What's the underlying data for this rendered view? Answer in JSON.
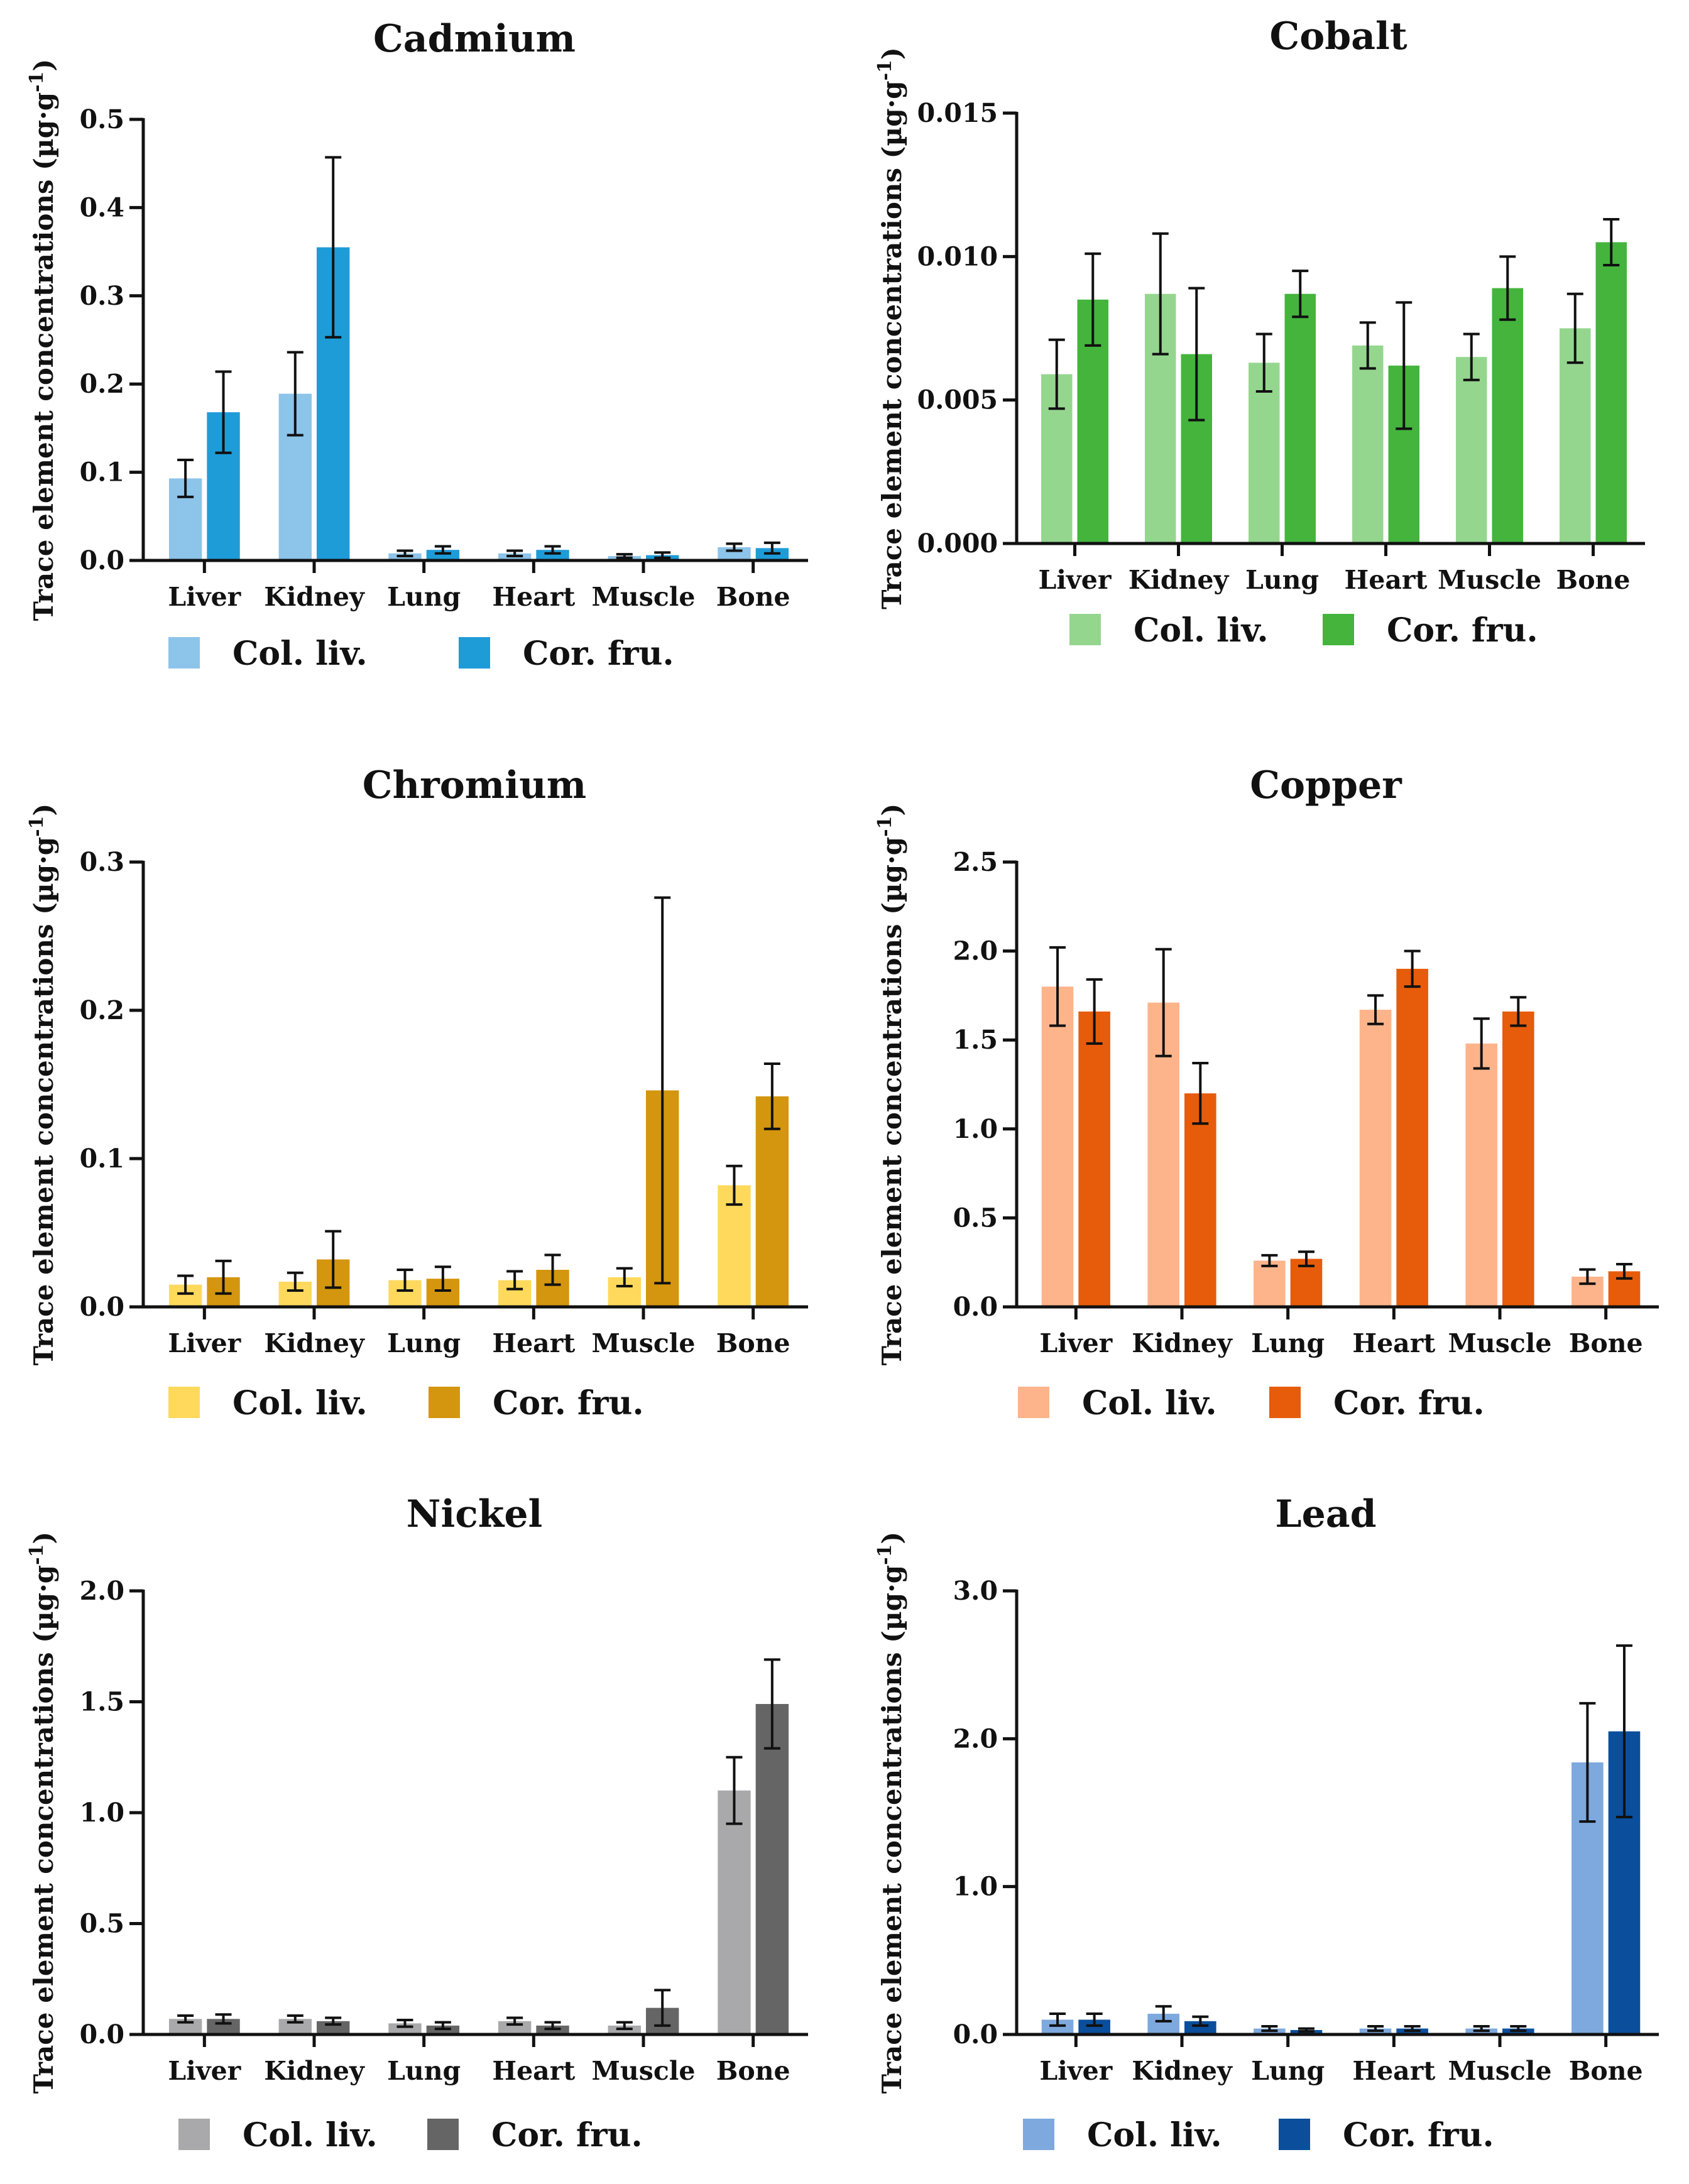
{
  "y_label": "Trace element concentrations (µg·g",
  "y_label_sup": "-1",
  "y_label_end": ")",
  "chart_data": [
    {
      "type": "bar",
      "title": "Cadmium",
      "categories": [
        "Liver",
        "Kidney",
        "Lung",
        "Heart",
        "Muscle",
        "Bone"
      ],
      "ylim": [
        0,
        0.5
      ],
      "ticks": [
        0.0,
        0.1,
        0.2,
        0.3,
        0.4,
        0.5
      ],
      "tick_labels": [
        "0.0",
        "0.1",
        "0.2",
        "0.3",
        "0.4",
        "0.5"
      ],
      "series": [
        {
          "name": "Col. liv.",
          "color": "#8cc4ea",
          "values": [
            0.093,
            0.189,
            0.008,
            0.008,
            0.005,
            0.015
          ],
          "errors": [
            0.021,
            0.047,
            0.003,
            0.003,
            0.002,
            0.004
          ]
        },
        {
          "name": "Cor. fru.",
          "color": "#1e9cd8",
          "values": [
            0.168,
            0.355,
            0.012,
            0.012,
            0.006,
            0.014
          ],
          "errors": [
            0.046,
            0.102,
            0.004,
            0.004,
            0.003,
            0.006
          ]
        }
      ]
    },
    {
      "type": "bar",
      "title": "Cobalt",
      "categories": [
        "Liver",
        "Kidney",
        "Lung",
        "Heart",
        "Muscle",
        "Bone"
      ],
      "ylim": [
        0,
        0.015
      ],
      "ticks": [
        0.0,
        0.005,
        0.01,
        0.015
      ],
      "tick_labels": [
        "0.000",
        "0.005",
        "0.010",
        "0.015"
      ],
      "series": [
        {
          "name": "Col. liv.",
          "color": "#95d68f",
          "values": [
            0.0059,
            0.0087,
            0.0063,
            0.0069,
            0.0065,
            0.0075
          ],
          "errors": [
            0.0012,
            0.0021,
            0.001,
            0.0008,
            0.0008,
            0.0012
          ]
        },
        {
          "name": "Cor. fru.",
          "color": "#44b43d",
          "values": [
            0.0085,
            0.0066,
            0.0087,
            0.0062,
            0.0089,
            0.0105
          ],
          "errors": [
            0.0016,
            0.0023,
            0.0008,
            0.0022,
            0.0011,
            0.0008
          ]
        }
      ]
    },
    {
      "type": "bar",
      "title": "Chromium",
      "categories": [
        "Liver",
        "Kidney",
        "Lung",
        "Heart",
        "Muscle",
        "Bone"
      ],
      "ylim": [
        0,
        0.3
      ],
      "ticks": [
        0.0,
        0.1,
        0.2,
        0.3
      ],
      "tick_labels": [
        "0.0",
        "0.1",
        "0.2",
        "0.3"
      ],
      "series": [
        {
          "name": "Col. liv.",
          "color": "#fed95c",
          "values": [
            0.015,
            0.017,
            0.018,
            0.018,
            0.02,
            0.082
          ],
          "errors": [
            0.006,
            0.006,
            0.007,
            0.006,
            0.006,
            0.013
          ]
        },
        {
          "name": "Cor. fru.",
          "color": "#d4960f",
          "values": [
            0.02,
            0.032,
            0.019,
            0.025,
            0.146,
            0.142
          ],
          "errors": [
            0.011,
            0.019,
            0.008,
            0.01,
            0.13,
            0.022
          ]
        }
      ]
    },
    {
      "type": "bar",
      "title": "Copper",
      "categories": [
        "Liver",
        "Kidney",
        "Lung",
        "Heart",
        "Muscle",
        "Bone"
      ],
      "ylim": [
        0,
        2.5
      ],
      "ticks": [
        0.0,
        0.5,
        1.0,
        1.5,
        2.0,
        2.5
      ],
      "tick_labels": [
        "0.0",
        "0.5",
        "1.0",
        "1.5",
        "2.0",
        "2.5"
      ],
      "series": [
        {
          "name": "Col. liv.",
          "color": "#fdb48b",
          "values": [
            1.8,
            1.71,
            0.26,
            1.67,
            1.48,
            0.17
          ],
          "errors": [
            0.22,
            0.3,
            0.03,
            0.08,
            0.14,
            0.04
          ]
        },
        {
          "name": "Cor. fru.",
          "color": "#e65c0a",
          "values": [
            1.66,
            1.2,
            0.27,
            1.9,
            1.66,
            0.2
          ],
          "errors": [
            0.18,
            0.17,
            0.04,
            0.1,
            0.08,
            0.04
          ]
        }
      ]
    },
    {
      "type": "bar",
      "title": "Nickel",
      "categories": [
        "Liver",
        "Kidney",
        "Lung",
        "Heart",
        "Muscle",
        "Bone"
      ],
      "ylim": [
        0,
        2.0
      ],
      "ticks": [
        0.0,
        0.5,
        1.0,
        1.5,
        2.0
      ],
      "tick_labels": [
        "0.0",
        "0.5",
        "1.0",
        "1.5",
        "2.0"
      ],
      "series": [
        {
          "name": "Col. liv.",
          "color": "#a9a9ab",
          "values": [
            0.07,
            0.07,
            0.05,
            0.06,
            0.04,
            1.1
          ],
          "errors": [
            0.015,
            0.015,
            0.015,
            0.015,
            0.015,
            0.15
          ]
        },
        {
          "name": "Cor. fru.",
          "color": "#656565",
          "values": [
            0.07,
            0.06,
            0.04,
            0.04,
            0.12,
            1.49
          ],
          "errors": [
            0.02,
            0.015,
            0.015,
            0.015,
            0.08,
            0.2
          ]
        }
      ]
    },
    {
      "type": "bar",
      "title": "Lead",
      "categories": [
        "Liver",
        "Kidney",
        "Lung",
        "Heart",
        "Muscle",
        "Bone"
      ],
      "ylim": [
        0,
        3.0
      ],
      "ticks": [
        0.0,
        1.0,
        2.0,
        3.0
      ],
      "tick_labels": [
        "0.0",
        "1.0",
        "2.0",
        "3.0"
      ],
      "series": [
        {
          "name": "Col. liv.",
          "color": "#7ea9de",
          "values": [
            0.1,
            0.14,
            0.04,
            0.04,
            0.04,
            1.84
          ],
          "errors": [
            0.04,
            0.05,
            0.015,
            0.015,
            0.015,
            0.4
          ]
        },
        {
          "name": "Cor. fru.",
          "color": "#0a4e9c",
          "values": [
            0.1,
            0.09,
            0.03,
            0.04,
            0.04,
            2.05
          ],
          "errors": [
            0.04,
            0.03,
            0.01,
            0.015,
            0.015,
            0.58
          ]
        }
      ]
    }
  ]
}
